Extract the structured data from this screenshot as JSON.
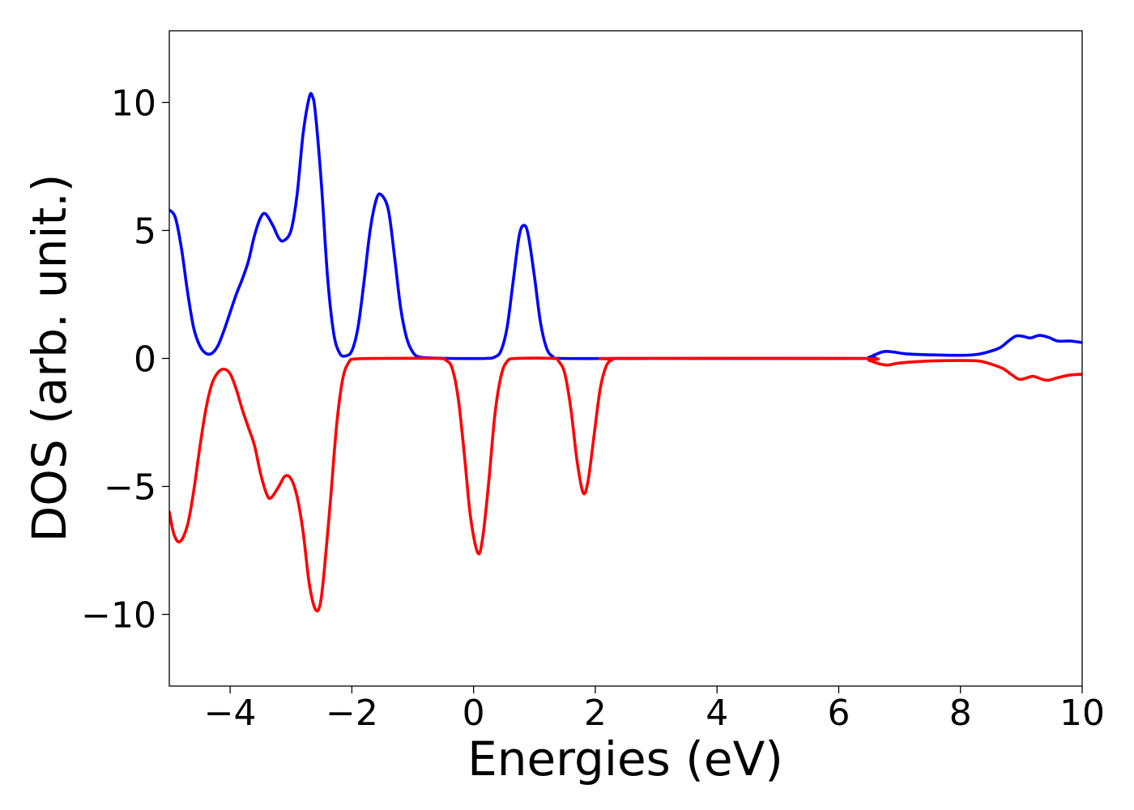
{
  "chart_data": {
    "type": "line",
    "xlabel": "Energies (eV)",
    "ylabel": "DOS (arb. unit.)",
    "xlim": [
      -5,
      10
    ],
    "ylim": [
      -12.8,
      12.8
    ],
    "x_ticks": [
      -4,
      -2,
      0,
      2,
      4,
      6,
      8,
      10
    ],
    "x_tick_labels": [
      "−4",
      "−2",
      "0",
      "2",
      "4",
      "6",
      "8",
      "10"
    ],
    "y_ticks": [
      -10,
      -5,
      0,
      5,
      10
    ],
    "y_tick_labels": [
      "−10",
      "−5",
      "0",
      "5",
      "10"
    ],
    "grid": false,
    "series": [
      {
        "color": "#0000ff",
        "points": [
          [
            -5.0,
            5.8
          ],
          [
            -4.9,
            5.5
          ],
          [
            -4.8,
            4.3
          ],
          [
            -4.7,
            2.6
          ],
          [
            -4.6,
            1.2
          ],
          [
            -4.5,
            0.5
          ],
          [
            -4.4,
            0.2
          ],
          [
            -4.3,
            0.2
          ],
          [
            -4.2,
            0.5
          ],
          [
            -4.1,
            1.1
          ],
          [
            -4.0,
            1.8
          ],
          [
            -3.9,
            2.5
          ],
          [
            -3.8,
            3.1
          ],
          [
            -3.7,
            3.8
          ],
          [
            -3.6,
            4.8
          ],
          [
            -3.5,
            5.5
          ],
          [
            -3.42,
            5.65
          ],
          [
            -3.3,
            5.2
          ],
          [
            -3.2,
            4.7
          ],
          [
            -3.12,
            4.6
          ],
          [
            -3.0,
            5.0
          ],
          [
            -2.9,
            6.4
          ],
          [
            -2.8,
            8.8
          ],
          [
            -2.7,
            10.2
          ],
          [
            -2.65,
            10.25
          ],
          [
            -2.6,
            9.6
          ],
          [
            -2.5,
            6.8
          ],
          [
            -2.4,
            3.2
          ],
          [
            -2.3,
            1.0
          ],
          [
            -2.2,
            0.2
          ],
          [
            -2.1,
            0.1
          ],
          [
            -2.0,
            0.3
          ],
          [
            -1.9,
            1.2
          ],
          [
            -1.8,
            3.0
          ],
          [
            -1.7,
            5.0
          ],
          [
            -1.6,
            6.2
          ],
          [
            -1.52,
            6.4
          ],
          [
            -1.4,
            5.8
          ],
          [
            -1.3,
            4.0
          ],
          [
            -1.2,
            2.0
          ],
          [
            -1.1,
            0.8
          ],
          [
            -1.0,
            0.25
          ],
          [
            -0.9,
            0.06
          ],
          [
            -0.7,
            0.02
          ],
          [
            -0.4,
            0.0
          ],
          [
            0.2,
            0.0
          ],
          [
            0.35,
            0.06
          ],
          [
            0.45,
            0.3
          ],
          [
            0.55,
            1.2
          ],
          [
            0.65,
            3.0
          ],
          [
            0.75,
            4.8
          ],
          [
            0.83,
            5.2
          ],
          [
            0.9,
            4.8
          ],
          [
            1.0,
            3.2
          ],
          [
            1.1,
            1.4
          ],
          [
            1.2,
            0.4
          ],
          [
            1.3,
            0.08
          ],
          [
            1.45,
            0.0
          ],
          [
            3.0,
            0.0
          ],
          [
            6.3,
            0.0
          ],
          [
            6.5,
            0.05
          ],
          [
            6.6,
            0.15
          ],
          [
            6.75,
            0.27
          ],
          [
            6.9,
            0.25
          ],
          [
            7.1,
            0.18
          ],
          [
            7.5,
            0.14
          ],
          [
            8.0,
            0.12
          ],
          [
            8.25,
            0.15
          ],
          [
            8.45,
            0.25
          ],
          [
            8.65,
            0.42
          ],
          [
            8.8,
            0.7
          ],
          [
            8.92,
            0.88
          ],
          [
            9.05,
            0.85
          ],
          [
            9.15,
            0.8
          ],
          [
            9.3,
            0.9
          ],
          [
            9.45,
            0.82
          ],
          [
            9.6,
            0.68
          ],
          [
            9.8,
            0.68
          ],
          [
            10.0,
            0.62
          ]
        ]
      },
      {
        "color": "#ff0000",
        "points": [
          [
            -5.0,
            -6.0
          ],
          [
            -4.92,
            -6.9
          ],
          [
            -4.82,
            -7.15
          ],
          [
            -4.7,
            -6.5
          ],
          [
            -4.6,
            -5.2
          ],
          [
            -4.5,
            -3.5
          ],
          [
            -4.4,
            -2.0
          ],
          [
            -4.3,
            -1.0
          ],
          [
            -4.2,
            -0.55
          ],
          [
            -4.1,
            -0.42
          ],
          [
            -4.0,
            -0.6
          ],
          [
            -3.9,
            -1.2
          ],
          [
            -3.8,
            -2.0
          ],
          [
            -3.7,
            -2.7
          ],
          [
            -3.6,
            -3.4
          ],
          [
            -3.5,
            -4.5
          ],
          [
            -3.4,
            -5.3
          ],
          [
            -3.33,
            -5.45
          ],
          [
            -3.2,
            -5.0
          ],
          [
            -3.1,
            -4.6
          ],
          [
            -3.0,
            -4.7
          ],
          [
            -2.9,
            -5.4
          ],
          [
            -2.8,
            -6.8
          ],
          [
            -2.7,
            -8.8
          ],
          [
            -2.6,
            -9.8
          ],
          [
            -2.52,
            -9.6
          ],
          [
            -2.45,
            -8.2
          ],
          [
            -2.35,
            -5.5
          ],
          [
            -2.25,
            -2.6
          ],
          [
            -2.15,
            -0.8
          ],
          [
            -2.05,
            -0.15
          ],
          [
            -1.95,
            -0.02
          ],
          [
            -1.5,
            0.0
          ],
          [
            -0.6,
            0.0
          ],
          [
            -0.45,
            -0.08
          ],
          [
            -0.35,
            -0.4
          ],
          [
            -0.25,
            -1.6
          ],
          [
            -0.15,
            -3.8
          ],
          [
            -0.05,
            -6.2
          ],
          [
            0.07,
            -7.6
          ],
          [
            0.15,
            -7.0
          ],
          [
            0.25,
            -4.8
          ],
          [
            0.35,
            -2.2
          ],
          [
            0.45,
            -0.7
          ],
          [
            0.55,
            -0.12
          ],
          [
            0.7,
            0.0
          ],
          [
            1.3,
            0.0
          ],
          [
            1.4,
            -0.12
          ],
          [
            1.5,
            -0.6
          ],
          [
            1.6,
            -2.0
          ],
          [
            1.7,
            -4.0
          ],
          [
            1.8,
            -5.25
          ],
          [
            1.88,
            -4.8
          ],
          [
            1.98,
            -3.0
          ],
          [
            2.08,
            -1.2
          ],
          [
            2.18,
            -0.3
          ],
          [
            2.28,
            -0.05
          ],
          [
            2.4,
            0.0
          ],
          [
            6.3,
            0.0
          ],
          [
            6.5,
            -0.08
          ],
          [
            6.65,
            -0.2
          ],
          [
            6.8,
            -0.26
          ],
          [
            7.0,
            -0.18
          ],
          [
            7.5,
            -0.1
          ],
          [
            8.0,
            -0.08
          ],
          [
            8.3,
            -0.1
          ],
          [
            8.5,
            -0.22
          ],
          [
            8.7,
            -0.4
          ],
          [
            8.85,
            -0.65
          ],
          [
            8.97,
            -0.82
          ],
          [
            9.1,
            -0.75
          ],
          [
            9.2,
            -0.7
          ],
          [
            9.35,
            -0.82
          ],
          [
            9.45,
            -0.85
          ],
          [
            9.6,
            -0.75
          ],
          [
            9.8,
            -0.65
          ],
          [
            10.0,
            -0.62
          ]
        ]
      }
    ]
  }
}
